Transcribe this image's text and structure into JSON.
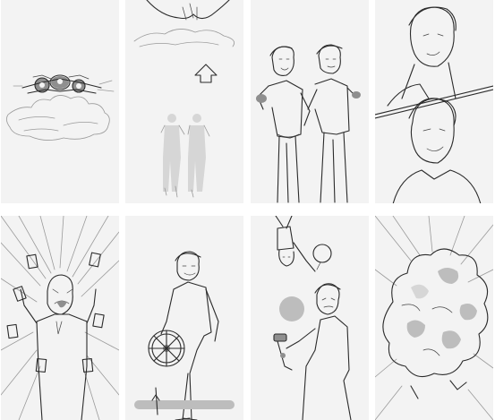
{
  "storyboard": {
    "panels": [
      {
        "id": 1,
        "subject": "spaceship-over-cloud"
      },
      {
        "id": 2,
        "subject": "teleport-beam-up"
      },
      {
        "id": 3,
        "subject": "two-pilots-pointing"
      },
      {
        "id": 4,
        "subject": "two-pilot-closeups"
      },
      {
        "id": 5,
        "subject": "angry-man-with-cards"
      },
      {
        "id": 6,
        "subject": "man-with-ship-wheel"
      },
      {
        "id": 7,
        "subject": "falling-man-with-blaster"
      },
      {
        "id": 8,
        "subject": "explosion-cloud"
      }
    ],
    "colors": {
      "page": "#ffffff",
      "panel": "#f3f3f3",
      "ink": "#2b2b2b",
      "shade": "#bdbdbd"
    }
  }
}
